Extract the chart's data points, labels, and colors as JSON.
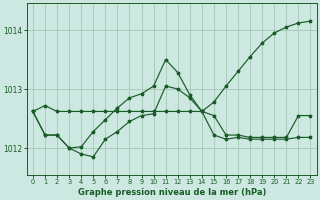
{
  "title": "Graphe pression niveau de la mer (hPa)",
  "background_color": "#cce8e0",
  "grid_color": "#aaccbb",
  "line_color": "#1a5c28",
  "xlim": [
    -0.5,
    23.5
  ],
  "ylim": [
    1011.55,
    1014.45
  ],
  "yticks": [
    1012,
    1013,
    1014
  ],
  "xticks": [
    0,
    1,
    2,
    3,
    4,
    5,
    6,
    7,
    8,
    9,
    10,
    11,
    12,
    13,
    14,
    15,
    16,
    17,
    18,
    19,
    20,
    21,
    22,
    23
  ],
  "s1": [
    1012.62,
    1012.72,
    1012.62,
    1012.62,
    1012.62,
    1012.62,
    1012.62,
    1012.62,
    1012.62,
    1012.62,
    1012.62,
    1012.62,
    1012.62,
    1012.62,
    1012.62,
    1012.78,
    1013.05,
    1013.3,
    1013.55,
    1013.78,
    1013.95,
    1014.05,
    1014.12,
    1014.15
  ],
  "s2": [
    1012.62,
    1012.22,
    1012.22,
    1012.0,
    1012.02,
    1012.28,
    1012.48,
    1012.68,
    1012.85,
    1012.92,
    1013.05,
    1013.5,
    1013.28,
    1012.9,
    1012.62,
    1012.55,
    1012.22,
    1012.22,
    1012.18,
    1012.18,
    1012.18,
    1012.18,
    1012.55,
    1012.55
  ],
  "s3": [
    1012.62,
    1012.22,
    1012.22,
    1012.0,
    1011.9,
    1011.85,
    1012.15,
    1012.28,
    1012.45,
    1012.55,
    1012.58,
    1013.05,
    1013.0,
    1012.85,
    1012.62,
    1012.22,
    1012.15,
    1012.18,
    1012.15,
    1012.15,
    1012.15,
    1012.15,
    1012.18,
    1012.18
  ]
}
